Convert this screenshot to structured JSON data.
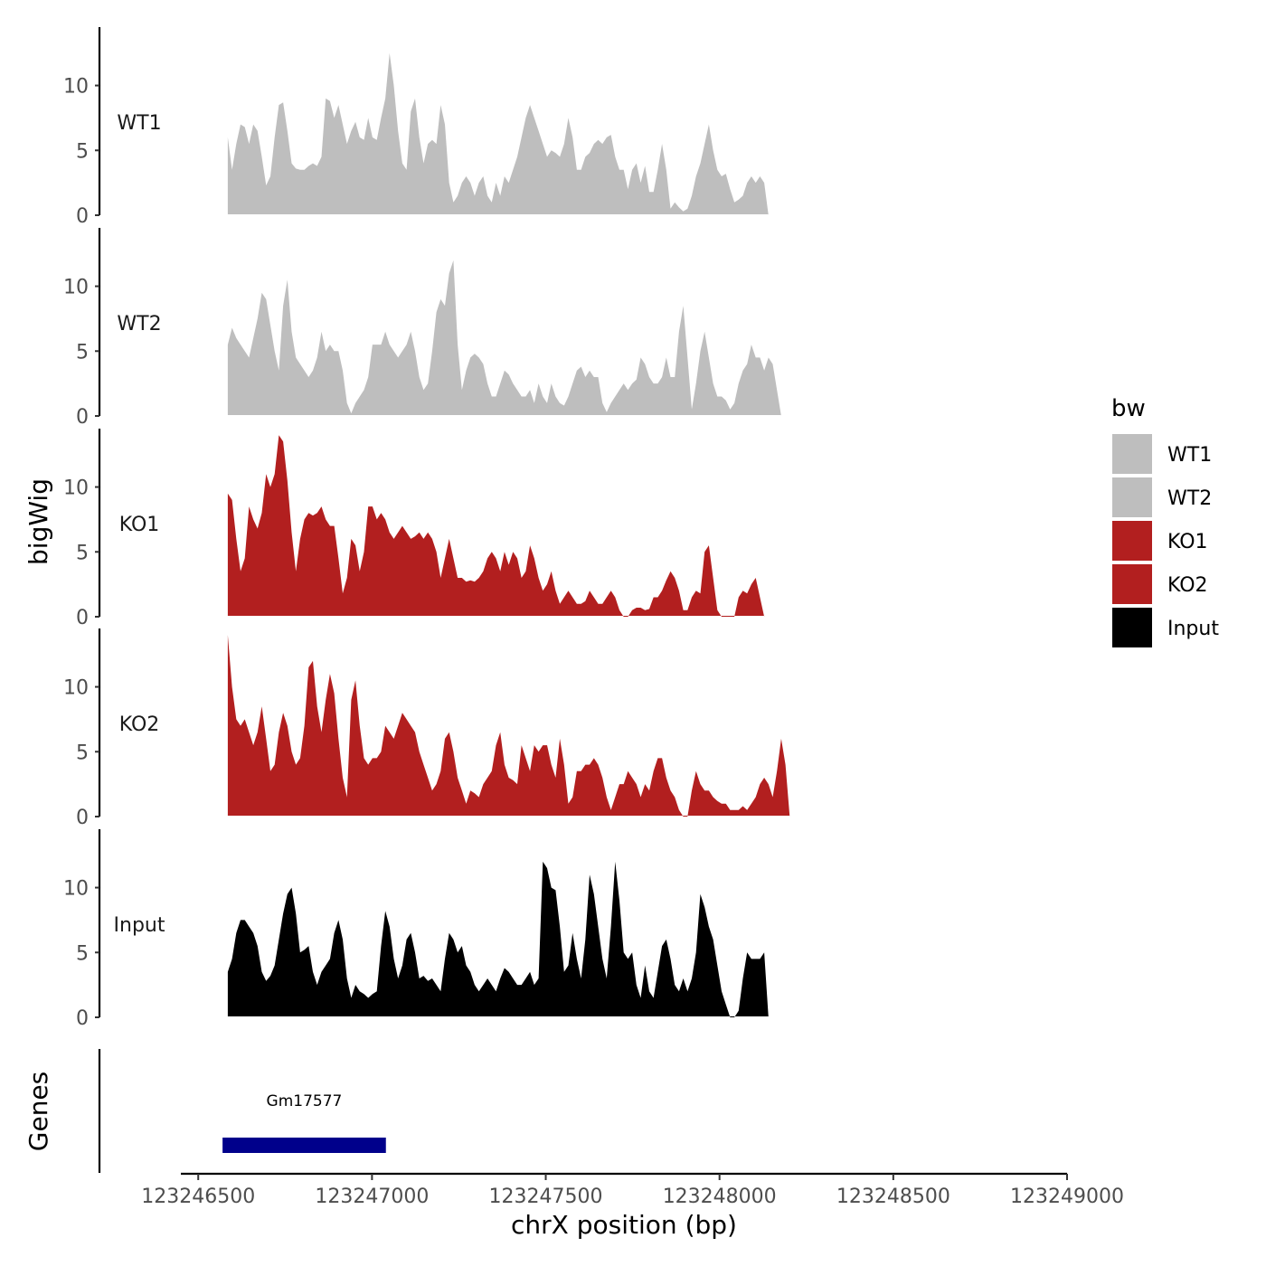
{
  "chart_data": {
    "type": "area",
    "ylabel": "bigWig",
    "genes_label": "Genes",
    "xlabel": "chrX position (bp)",
    "xlim": [
      123246450,
      123249000
    ],
    "x_ticks": [
      123246500,
      123247000,
      123247500,
      123248000,
      123248500,
      123249000
    ],
    "x_tick_labels": [
      "123246500",
      "123247000",
      "123247500",
      "123248000",
      "123248500",
      "123249000"
    ],
    "ylim": [
      0,
      14.5
    ],
    "y_ticks": [
      0,
      5,
      10
    ],
    "y_tick_labels": [
      "0",
      "5",
      "10"
    ],
    "track_start": 123246585,
    "track_step": 12.25,
    "series": [
      {
        "name": "WT1",
        "color": "#bebebe",
        "values": [
          6.0,
          3.5,
          5.5,
          7.0,
          6.8,
          5.5,
          7.0,
          6.5,
          4.5,
          2.3,
          3.0,
          6.0,
          8.5,
          8.7,
          6.5,
          4.0,
          3.6,
          3.5,
          3.5,
          3.8,
          4.0,
          3.8,
          4.5,
          9.0,
          8.8,
          7.5,
          8.5,
          7.0,
          5.5,
          6.5,
          7.2,
          6.0,
          5.8,
          7.5,
          6.0,
          5.8,
          7.5,
          9.0,
          12.5,
          10.0,
          6.5,
          4.0,
          3.5,
          8.0,
          9.0,
          6.0,
          4.0,
          5.5,
          5.8,
          5.5,
          8.5,
          7.0,
          2.5,
          1.0,
          1.5,
          2.5,
          3.0,
          2.5,
          1.5,
          2.5,
          3.0,
          1.5,
          1.0,
          2.5,
          1.5,
          3.0,
          2.5,
          3.5,
          4.5,
          6.0,
          7.5,
          8.5,
          7.5,
          6.5,
          5.5,
          4.5,
          5.0,
          4.8,
          4.5,
          5.5,
          7.5,
          6.0,
          3.5,
          3.5,
          4.5,
          4.8,
          5.5,
          5.8,
          5.5,
          6.0,
          6.2,
          4.5,
          3.5,
          3.5,
          2.0,
          3.5,
          4.0,
          2.5,
          3.8,
          1.8,
          1.8,
          3.5,
          5.5,
          3.5,
          0.5,
          1.0,
          0.6,
          0.3,
          0.5,
          1.5,
          3.0,
          4.0,
          5.5,
          7.0,
          5.0,
          3.5,
          3.0,
          3.2,
          2.0,
          1.0,
          1.2,
          1.5,
          2.5,
          3.0,
          2.5,
          3.0,
          2.5,
          0
        ]
      },
      {
        "name": "WT2",
        "color": "#bebebe",
        "values": [
          5.5,
          6.8,
          6.0,
          5.5,
          5.0,
          4.5,
          6.0,
          7.5,
          9.5,
          9.0,
          7.0,
          5.0,
          3.5,
          8.5,
          10.5,
          6.5,
          4.5,
          4.0,
          3.5,
          3.0,
          3.5,
          4.5,
          6.5,
          5.0,
          5.5,
          5.0,
          5.0,
          3.5,
          1.0,
          0.2,
          1.0,
          1.5,
          2.0,
          3.0,
          5.5,
          5.5,
          5.5,
          6.5,
          5.5,
          5.0,
          4.5,
          5.0,
          5.5,
          6.5,
          5.0,
          3.0,
          2.0,
          2.5,
          5.0,
          8.0,
          9.0,
          8.5,
          11.0,
          12.0,
          5.5,
          2.0,
          3.5,
          4.5,
          4.8,
          4.5,
          4.0,
          2.5,
          1.5,
          1.5,
          2.5,
          3.5,
          3.2,
          2.5,
          2.0,
          1.5,
          1.5,
          2.0,
          1.0,
          2.5,
          1.5,
          1.0,
          2.5,
          1.5,
          1.0,
          0.8,
          1.5,
          2.5,
          3.5,
          3.8,
          3.0,
          3.5,
          3.0,
          3.0,
          1.0,
          0.3,
          1.0,
          1.5,
          2.0,
          2.5,
          2.0,
          2.5,
          2.8,
          4.5,
          4.0,
          3.0,
          2.5,
          2.5,
          3.0,
          4.5,
          3.0,
          3.0,
          6.5,
          8.5,
          4.5,
          0.5,
          2.5,
          5.0,
          6.5,
          4.5,
          2.5,
          1.5,
          1.5,
          1.2,
          0.5,
          1.0,
          2.5,
          3.5,
          4.0,
          5.5,
          4.5,
          4.5,
          3.5,
          4.5,
          4.0,
          2.0,
          0
        ]
      },
      {
        "name": "KO1",
        "color": "#b21f1f",
        "values": [
          9.5,
          9.0,
          6.0,
          3.5,
          4.5,
          8.5,
          7.5,
          6.8,
          8.0,
          11.0,
          10.0,
          11.0,
          14.0,
          13.5,
          10.5,
          6.5,
          3.5,
          6.0,
          7.5,
          8.0,
          7.8,
          8.0,
          8.5,
          7.5,
          7.0,
          7.0,
          4.5,
          1.8,
          3.0,
          6.0,
          5.5,
          3.5,
          5.0,
          8.5,
          8.5,
          7.5,
          8.0,
          7.5,
          6.5,
          6.0,
          6.5,
          7.0,
          6.5,
          6.0,
          6.2,
          6.5,
          6.0,
          6.5,
          6.0,
          5.0,
          3.0,
          4.5,
          6.0,
          4.5,
          3.0,
          3.0,
          2.7,
          2.8,
          2.7,
          3.0,
          3.5,
          4.5,
          5.0,
          4.5,
          3.5,
          5.0,
          4.0,
          5.0,
          4.5,
          3.0,
          3.5,
          5.5,
          4.5,
          3.0,
          2.0,
          2.5,
          3.5,
          2.0,
          1.0,
          1.5,
          2.0,
          1.5,
          1.0,
          1.0,
          1.2,
          2.0,
          1.5,
          1.0,
          1.0,
          1.5,
          2.0,
          1.5,
          0.5,
          0.0,
          0.0,
          0.5,
          0.7,
          0.7,
          0.5,
          0.6,
          1.5,
          1.5,
          2.0,
          2.8,
          3.5,
          3.0,
          2.0,
          0.5,
          0.5,
          1.5,
          2.0,
          1.8,
          5.0,
          5.5,
          3.0,
          0.5,
          0.0,
          0.0,
          0.0,
          0.0,
          1.5,
          2.0,
          1.8,
          2.5,
          3.0,
          1.5,
          0
        ]
      },
      {
        "name": "KO2",
        "color": "#b21f1f",
        "values": [
          14.0,
          10.0,
          7.5,
          7.0,
          7.5,
          6.5,
          5.5,
          6.5,
          8.5,
          6.0,
          3.5,
          4.0,
          6.5,
          8.0,
          7.0,
          5.0,
          4.0,
          4.5,
          7.0,
          11.5,
          12.0,
          8.5,
          6.5,
          9.0,
          11.0,
          9.5,
          6.0,
          3.0,
          1.5,
          9.0,
          10.5,
          7.0,
          4.5,
          4.0,
          4.5,
          4.5,
          5.0,
          7.0,
          6.5,
          6.0,
          7.0,
          8.0,
          7.5,
          7.0,
          6.5,
          5.0,
          4.0,
          3.0,
          2.0,
          2.5,
          3.5,
          6.0,
          6.5,
          5.0,
          3.0,
          2.0,
          1.0,
          2.0,
          1.8,
          1.5,
          2.5,
          3.0,
          3.5,
          5.5,
          6.5,
          4.0,
          3.0,
          2.8,
          2.5,
          5.5,
          4.5,
          3.5,
          5.5,
          5.0,
          5.5,
          5.5,
          4.0,
          3.0,
          6.0,
          4.0,
          1.0,
          1.5,
          3.5,
          3.5,
          4.0,
          4.0,
          4.5,
          4.0,
          3.0,
          1.5,
          0.5,
          1.5,
          2.5,
          2.5,
          3.5,
          3.0,
          2.5,
          1.5,
          2.5,
          2.0,
          3.5,
          4.5,
          4.5,
          3.0,
          2.0,
          1.5,
          0.5,
          0.0,
          0.0,
          2.0,
          3.5,
          2.5,
          2.0,
          2.0,
          1.5,
          1.2,
          1.0,
          1.0,
          0.5,
          0.5,
          0.5,
          0.8,
          0.5,
          1.0,
          1.5,
          2.5,
          3.0,
          2.5,
          1.5,
          3.5,
          6.0,
          4.0,
          0
        ]
      },
      {
        "name": "Input",
        "color": "#000000",
        "values": [
          3.5,
          4.5,
          6.5,
          7.5,
          7.5,
          7.0,
          6.5,
          5.5,
          3.5,
          2.8,
          3.2,
          4.0,
          6.0,
          8.0,
          9.5,
          10.0,
          8.0,
          5.0,
          5.2,
          5.5,
          3.5,
          2.5,
          3.5,
          4.0,
          4.5,
          6.5,
          7.5,
          6.0,
          3.0,
          1.5,
          2.5,
          2.0,
          1.8,
          1.5,
          1.8,
          2.0,
          5.5,
          8.2,
          7.0,
          4.5,
          3.0,
          4.0,
          6.0,
          6.5,
          5.0,
          3.0,
          3.2,
          2.8,
          3.0,
          2.5,
          2.0,
          4.5,
          6.5,
          6.0,
          5.0,
          5.5,
          4.0,
          3.5,
          2.5,
          2.0,
          2.5,
          3.0,
          2.5,
          2.0,
          3.0,
          3.8,
          3.5,
          3.0,
          2.5,
          2.5,
          3.0,
          3.5,
          2.5,
          3.0,
          12.0,
          11.5,
          10.0,
          9.8,
          7.0,
          3.5,
          4.0,
          6.5,
          4.5,
          3.0,
          6.0,
          11.0,
          9.5,
          7.0,
          4.5,
          3.0,
          7.0,
          12.0,
          9.0,
          5.0,
          4.5,
          5.0,
          2.5,
          1.5,
          4.0,
          2.0,
          1.5,
          3.5,
          5.5,
          6.0,
          4.5,
          2.5,
          2.0,
          3.0,
          2.0,
          3.0,
          5.0,
          9.5,
          8.5,
          7.0,
          6.0,
          4.0,
          2.0,
          1.0,
          0.0,
          0.0,
          0.5,
          3.0,
          5.0,
          4.5,
          4.5,
          4.5,
          5.0,
          0
        ]
      }
    ],
    "genes": [
      {
        "name": "Gm17577",
        "start": 123246570,
        "end": 123247040,
        "color": "#00008b"
      }
    ],
    "legend": {
      "title": "bw",
      "position": "right",
      "entries": [
        {
          "label": "WT1",
          "color": "#bebebe"
        },
        {
          "label": "WT2",
          "color": "#bebebe"
        },
        {
          "label": "KO1",
          "color": "#b21f1f"
        },
        {
          "label": "KO2",
          "color": "#b21f1f"
        },
        {
          "label": "Input",
          "color": "#000000"
        }
      ]
    }
  }
}
